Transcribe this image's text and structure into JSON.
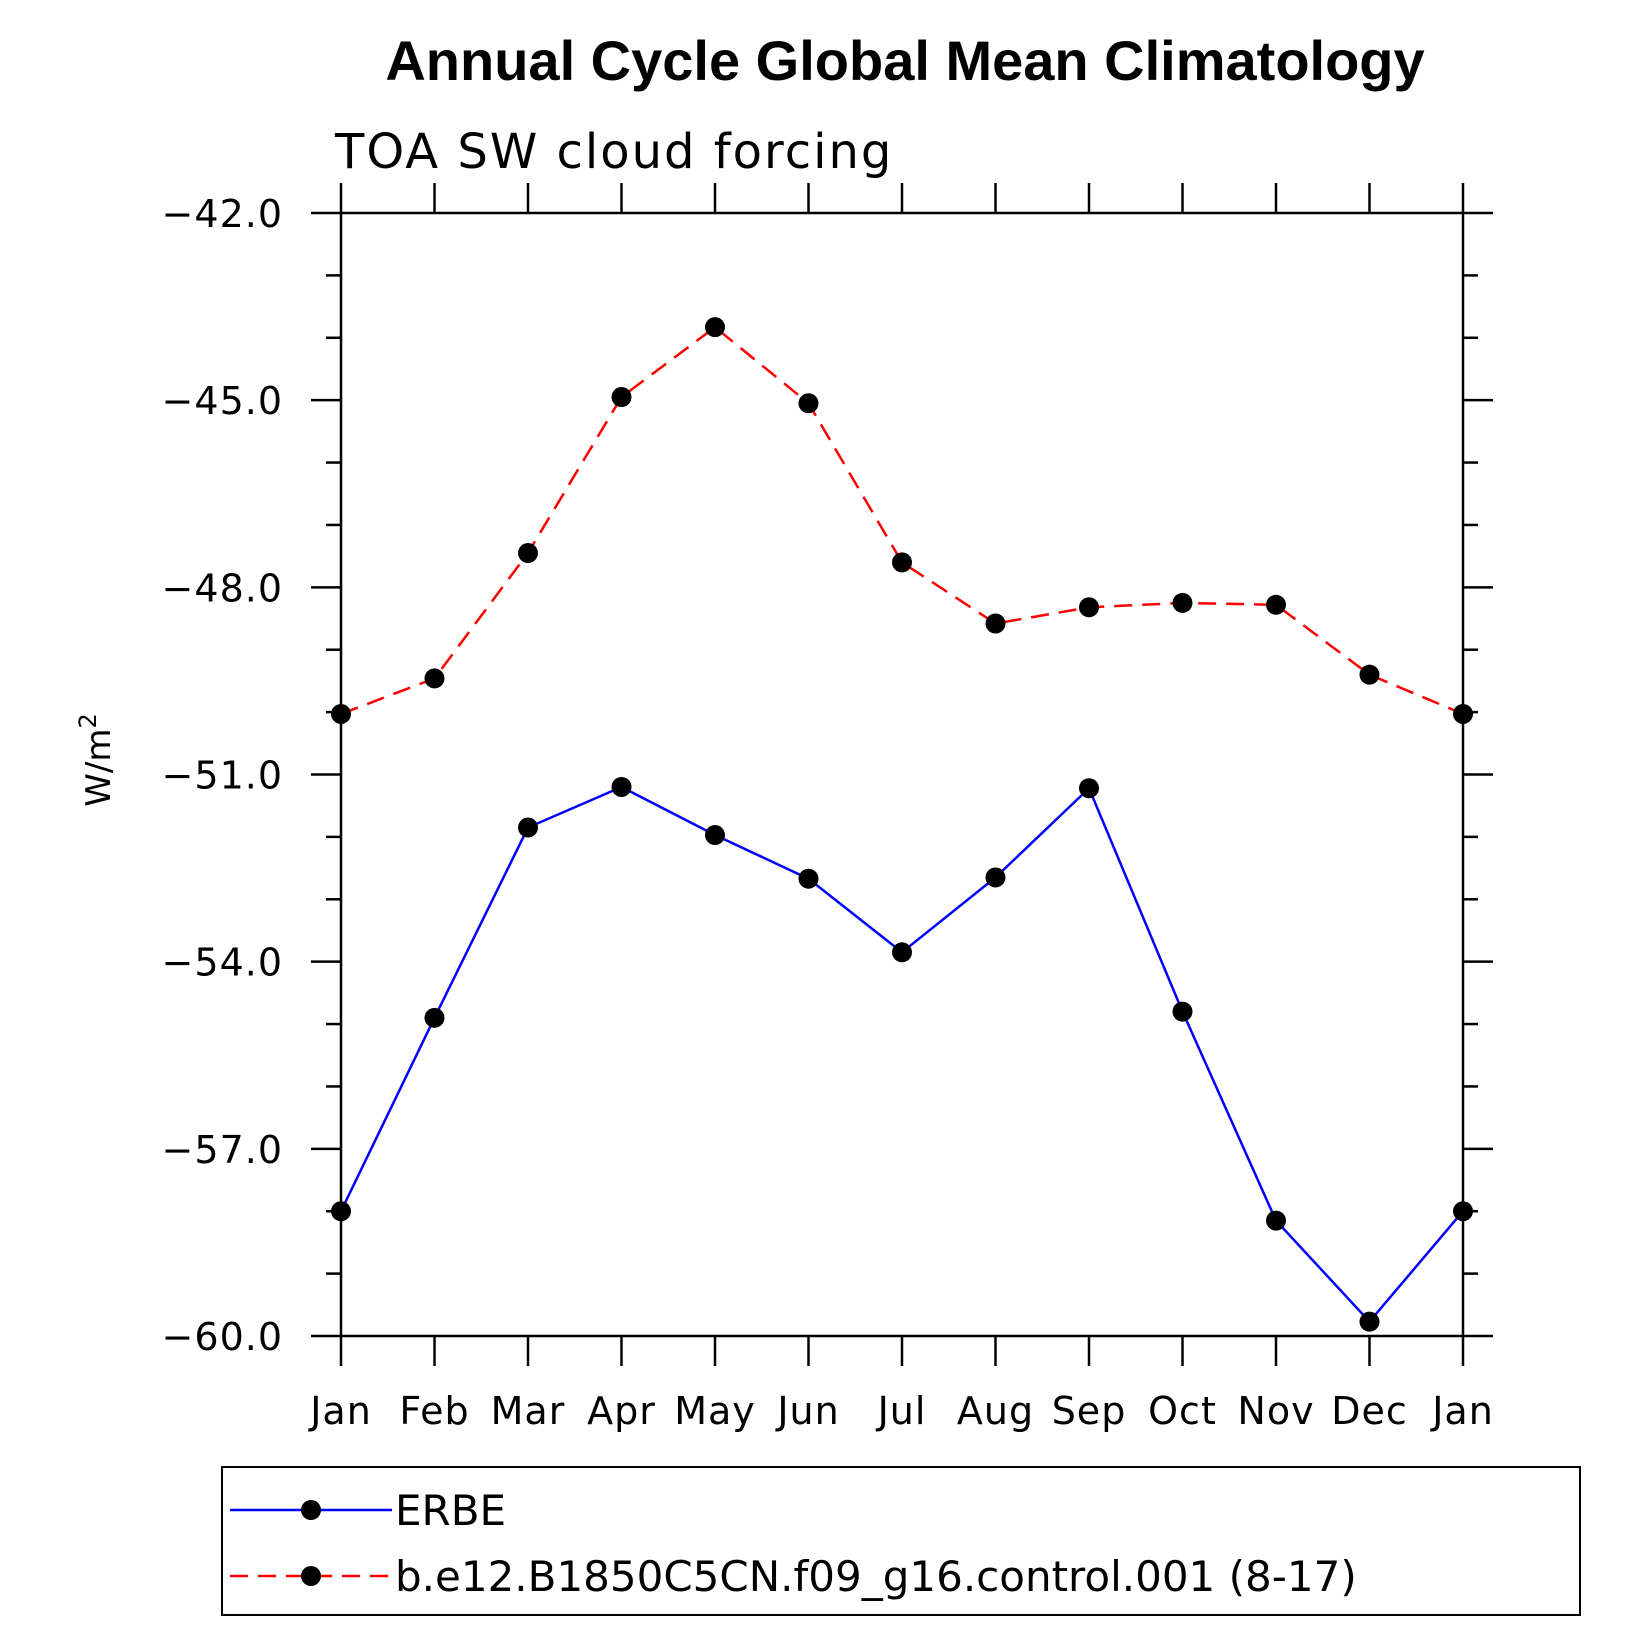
{
  "chart_data": {
    "type": "line",
    "title": "Annual Cycle Global Mean Climatology",
    "subtitle": "TOA SW cloud forcing",
    "ylabel": "W/m",
    "ylabel_superscript": "2",
    "xlabel": "",
    "categories": [
      "Jan",
      "Feb",
      "Mar",
      "Apr",
      "May",
      "Jun",
      "Jul",
      "Aug",
      "Sep",
      "Oct",
      "Nov",
      "Dec",
      "Jan"
    ],
    "ylim": [
      -60.0,
      -42.0
    ],
    "yticks": [
      "-42.0",
      "-45.0",
      "-48.0",
      "-51.0",
      "-54.0",
      "-57.0",
      "-60.0"
    ],
    "grid": false,
    "legend_position": "bottom",
    "series": [
      {
        "name": "ERBE",
        "color": "#0000ff",
        "line_style": "solid",
        "marker": "filled-circle",
        "values": [
          -58.0,
          -54.9,
          -51.85,
          -51.2,
          -51.97,
          -52.67,
          -53.85,
          -52.65,
          -51.22,
          -54.8,
          -58.15,
          -59.77,
          -58.0
        ]
      },
      {
        "name": "b.e12.B1850C5CN.f09_g16.control.001 (8-17)",
        "color": "#ff0000",
        "line_style": "dashed",
        "marker": "filled-circle",
        "values": [
          -50.03,
          -49.46,
          -47.45,
          -44.95,
          -43.83,
          -45.05,
          -47.6,
          -48.58,
          -48.32,
          -48.25,
          -48.28,
          -49.4,
          -50.03
        ]
      }
    ]
  }
}
